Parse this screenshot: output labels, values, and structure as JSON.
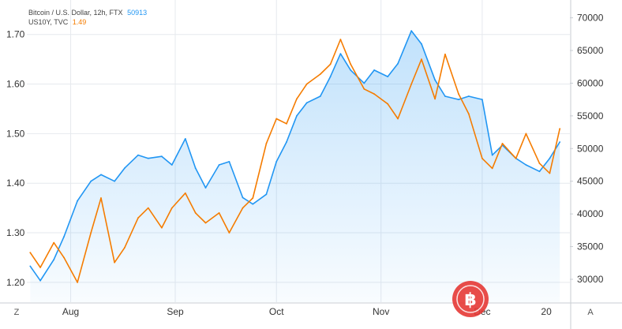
{
  "legend": [
    {
      "label": "Bitcoin / U.S. Dollar, 12h, FTX",
      "value": "50913",
      "color": "#2196f3"
    },
    {
      "label": "US10Y, TVC",
      "value": "1.49",
      "color": "#f57c00"
    }
  ],
  "controls": {
    "left_button": "Z",
    "right_button": "A"
  },
  "watermark_icon": "bitcoin-logo-icon",
  "chart_data": {
    "type": "line",
    "x_ticks": [
      "Aug",
      "Sep",
      "Oct",
      "Nov",
      "Dec",
      "20"
    ],
    "y_left": {
      "ticks": [
        "1.20",
        "1.30",
        "1.40",
        "1.50",
        "1.60",
        "1.70"
      ],
      "range": [
        1.16,
        1.76
      ]
    },
    "y_right": {
      "ticks": [
        "30000",
        "35000",
        "40000",
        "45000",
        "50000",
        "55000",
        "60000",
        "65000",
        "70000"
      ],
      "range": [
        26500,
        72000
      ]
    },
    "grid": true,
    "series": [
      {
        "name": "Bitcoin / U.S. Dollar, 12h, FTX",
        "axis": "right",
        "color": "#2196f3",
        "style": "area",
        "x": [
          "2021-07-20",
          "2021-07-23",
          "2021-07-27",
          "2021-07-30",
          "2021-08-03",
          "2021-08-07",
          "2021-08-10",
          "2021-08-14",
          "2021-08-17",
          "2021-08-21",
          "2021-08-24",
          "2021-08-28",
          "2021-08-31",
          "2021-09-04",
          "2021-09-07",
          "2021-09-10",
          "2021-09-14",
          "2021-09-17",
          "2021-09-21",
          "2021-09-24",
          "2021-09-28",
          "2021-10-01",
          "2021-10-04",
          "2021-10-07",
          "2021-10-10",
          "2021-10-14",
          "2021-10-17",
          "2021-10-20",
          "2021-10-23",
          "2021-10-27",
          "2021-10-30",
          "2021-11-03",
          "2021-11-06",
          "2021-11-10",
          "2021-11-13",
          "2021-11-17",
          "2021-11-20",
          "2021-11-24",
          "2021-11-27",
          "2021-12-01",
          "2021-12-04",
          "2021-12-07",
          "2021-12-11",
          "2021-12-14",
          "2021-12-18",
          "2021-12-21",
          "2021-12-24"
        ],
        "values": [
          32000,
          29800,
          33000,
          36500,
          42000,
          45000,
          46000,
          45000,
          47000,
          49000,
          48500,
          48800,
          47500,
          51500,
          47000,
          44000,
          47500,
          48000,
          42500,
          41500,
          43000,
          48000,
          51000,
          55000,
          57000,
          58000,
          61000,
          64500,
          62000,
          60000,
          62000,
          61000,
          63000,
          68000,
          66000,
          60500,
          58000,
          57500,
          58000,
          57500,
          49000,
          50500,
          48500,
          47500,
          46500,
          48500,
          51000
        ]
      },
      {
        "name": "US10Y, TVC",
        "axis": "left",
        "color": "#f57c00",
        "style": "line",
        "x": [
          "2021-07-20",
          "2021-07-23",
          "2021-07-27",
          "2021-07-30",
          "2021-08-03",
          "2021-08-07",
          "2021-08-10",
          "2021-08-14",
          "2021-08-17",
          "2021-08-21",
          "2021-08-24",
          "2021-08-28",
          "2021-08-31",
          "2021-09-04",
          "2021-09-07",
          "2021-09-10",
          "2021-09-14",
          "2021-09-17",
          "2021-09-21",
          "2021-09-24",
          "2021-09-28",
          "2021-10-01",
          "2021-10-04",
          "2021-10-07",
          "2021-10-10",
          "2021-10-14",
          "2021-10-17",
          "2021-10-20",
          "2021-10-23",
          "2021-10-27",
          "2021-10-30",
          "2021-11-03",
          "2021-11-06",
          "2021-11-10",
          "2021-11-13",
          "2021-11-17",
          "2021-11-20",
          "2021-11-24",
          "2021-11-27",
          "2021-12-01",
          "2021-12-04",
          "2021-12-07",
          "2021-12-11",
          "2021-12-14",
          "2021-12-18",
          "2021-12-21",
          "2021-12-24"
        ],
        "values": [
          1.26,
          1.23,
          1.28,
          1.25,
          1.2,
          1.3,
          1.37,
          1.24,
          1.27,
          1.33,
          1.35,
          1.31,
          1.35,
          1.38,
          1.34,
          1.32,
          1.34,
          1.3,
          1.35,
          1.37,
          1.48,
          1.53,
          1.52,
          1.57,
          1.6,
          1.62,
          1.64,
          1.69,
          1.64,
          1.59,
          1.58,
          1.56,
          1.53,
          1.6,
          1.65,
          1.57,
          1.66,
          1.58,
          1.54,
          1.45,
          1.43,
          1.48,
          1.45,
          1.5,
          1.44,
          1.42,
          1.51
        ]
      }
    ]
  }
}
